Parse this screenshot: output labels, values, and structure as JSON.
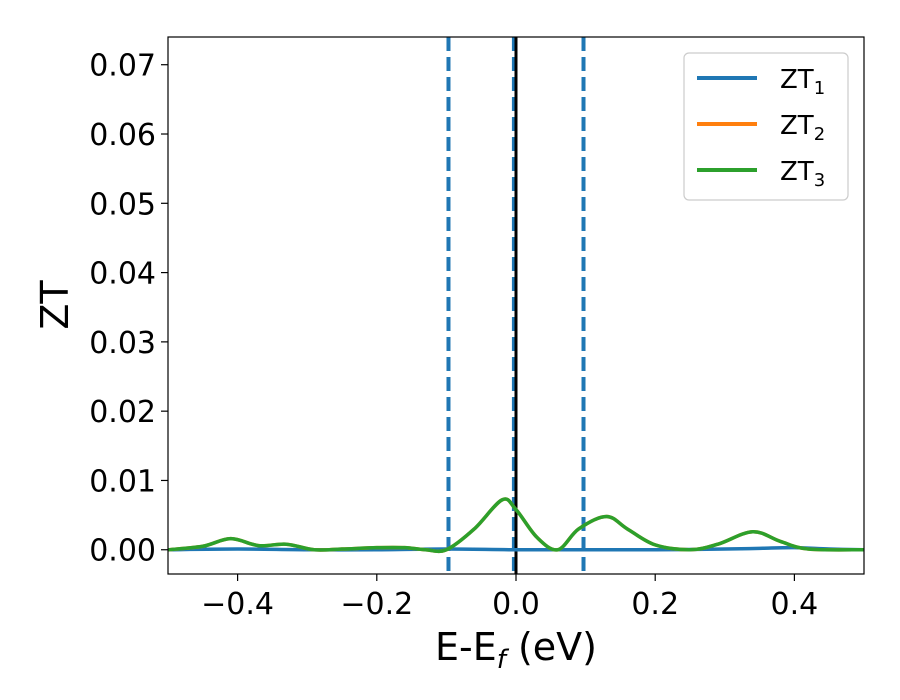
{
  "chart_data": {
    "type": "line",
    "xlabel": "E-E",
    "xlabel_sub": "f",
    "xlabel_unit": " (eV)",
    "ylabel": "ZT",
    "xlim": [
      -0.5,
      0.5
    ],
    "ylim": [
      -0.0035,
      0.074
    ],
    "x_ticks": [
      -0.4,
      -0.2,
      0.0,
      0.2,
      0.4
    ],
    "x_tick_labels": [
      "−0.4",
      "−0.2",
      "0.0",
      "0.2",
      "0.4"
    ],
    "y_ticks": [
      0.0,
      0.01,
      0.02,
      0.03,
      0.04,
      0.05,
      0.06,
      0.07
    ],
    "y_tick_labels": [
      "0.00",
      "0.01",
      "0.02",
      "0.03",
      "0.04",
      "0.05",
      "0.06",
      "0.07"
    ],
    "grid": false,
    "legend_position": "top-right",
    "vlines": [
      {
        "x": -0.097,
        "style": "dashed",
        "color": "#1f77b4"
      },
      {
        "x": -0.003,
        "style": "dashed",
        "color": "#1f77b4"
      },
      {
        "x": 0.0,
        "style": "solid",
        "color": "#000000"
      },
      {
        "x": 0.097,
        "style": "dashed",
        "color": "#1f77b4"
      }
    ],
    "series": [
      {
        "name": "ZT",
        "sub": "1",
        "color": "#1f77b4",
        "x": [
          -0.5,
          -0.4,
          -0.3,
          -0.2,
          -0.1,
          0.0,
          0.1,
          0.2,
          0.3,
          0.35,
          0.4,
          0.45,
          0.5
        ],
        "y": [
          0.0,
          0.0001,
          0.0,
          0.0,
          0.0001,
          0.0,
          0.0,
          0.0,
          0.0001,
          0.0002,
          0.0003,
          0.0001,
          0.0
        ]
      },
      {
        "name": "ZT",
        "sub": "2",
        "color": "#ff7f0e",
        "x": [
          -0.5,
          -0.45,
          -0.41,
          -0.37,
          -0.33,
          -0.29,
          -0.25,
          -0.2,
          -0.16,
          -0.13,
          -0.1,
          -0.06,
          -0.02,
          0.0,
          0.03,
          0.06,
          0.09,
          0.13,
          0.16,
          0.2,
          0.25,
          0.29,
          0.34,
          0.38,
          0.42,
          0.5
        ],
        "y": [
          0.0,
          0.0005,
          0.0016,
          0.0006,
          0.0008,
          0.0,
          0.0001,
          0.0003,
          0.0003,
          0.0,
          0.0,
          0.003,
          0.0072,
          0.0058,
          0.0018,
          0.0,
          0.003,
          0.0048,
          0.003,
          0.0007,
          0.0,
          0.0008,
          0.0026,
          0.0012,
          0.0001,
          0.0
        ]
      },
      {
        "name": "ZT",
        "sub": "3",
        "color": "#2ca02c",
        "x": [
          -0.5,
          -0.45,
          -0.41,
          -0.37,
          -0.33,
          -0.29,
          -0.25,
          -0.2,
          -0.16,
          -0.13,
          -0.1,
          -0.06,
          -0.02,
          0.0,
          0.03,
          0.06,
          0.09,
          0.13,
          0.16,
          0.2,
          0.25,
          0.29,
          0.34,
          0.38,
          0.42,
          0.5
        ],
        "y": [
          0.0,
          0.0005,
          0.0016,
          0.0006,
          0.0008,
          0.0,
          0.0001,
          0.0003,
          0.0003,
          0.0,
          0.0,
          0.003,
          0.0072,
          0.0058,
          0.0018,
          0.0,
          0.003,
          0.0048,
          0.003,
          0.0007,
          0.0,
          0.0008,
          0.0026,
          0.0012,
          0.0001,
          0.0
        ]
      }
    ]
  }
}
